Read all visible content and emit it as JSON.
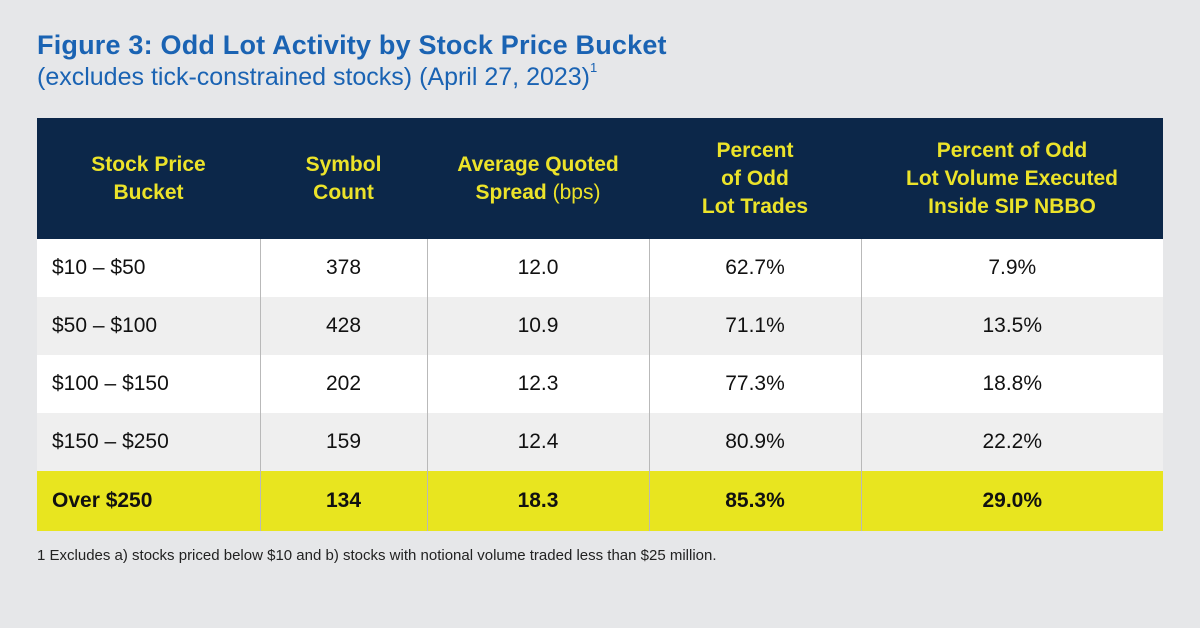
{
  "title": "Figure 3: Odd Lot Activity by Stock Price Bucket",
  "subtitle": "(excludes tick-constrained stocks) (April 27, 2023)",
  "subtitle_sup": "1",
  "colors": {
    "title": "#1a63b3",
    "header_bg": "#0c2749",
    "header_text": "#ece32a",
    "highlight": "#e8e51f",
    "row_alt": "#efefef"
  },
  "chart_data": {
    "type": "table",
    "columns": [
      {
        "line1": "Stock Price",
        "line2": "Bucket"
      },
      {
        "line1": "Symbol",
        "line2": "Count"
      },
      {
        "line1": "Average Quoted",
        "line2": "Spread",
        "line2_suffix": "(bps)"
      },
      {
        "line1": "Percent",
        "line2": "of Odd",
        "line3": "Lot Trades"
      },
      {
        "line1": "Percent of Odd",
        "line2": "Lot Volume Executed",
        "line3": "Inside SIP NBBO"
      }
    ],
    "rows": [
      {
        "bucket": "$10 – $50",
        "symbol_count": "378",
        "spread": "12.0",
        "pct_trades": "62.7%",
        "pct_volume": "7.9%"
      },
      {
        "bucket": "$50 – $100",
        "symbol_count": "428",
        "spread": "10.9",
        "pct_trades": "71.1%",
        "pct_volume": "13.5%"
      },
      {
        "bucket": "$100 – $150",
        "symbol_count": "202",
        "spread": "12.3",
        "pct_trades": "77.3%",
        "pct_volume": "18.8%"
      },
      {
        "bucket": "$150 – $250",
        "symbol_count": "159",
        "spread": "12.4",
        "pct_trades": "80.9%",
        "pct_volume": "22.2%"
      },
      {
        "bucket": "Over $250",
        "symbol_count": "134",
        "spread": "18.3",
        "pct_trades": "85.3%",
        "pct_volume": "29.0%"
      }
    ],
    "highlighted_row": "Over $250"
  },
  "footnote": "1 Excludes a) stocks priced below $10 and b) stocks with notional volume traded less than $25 million."
}
